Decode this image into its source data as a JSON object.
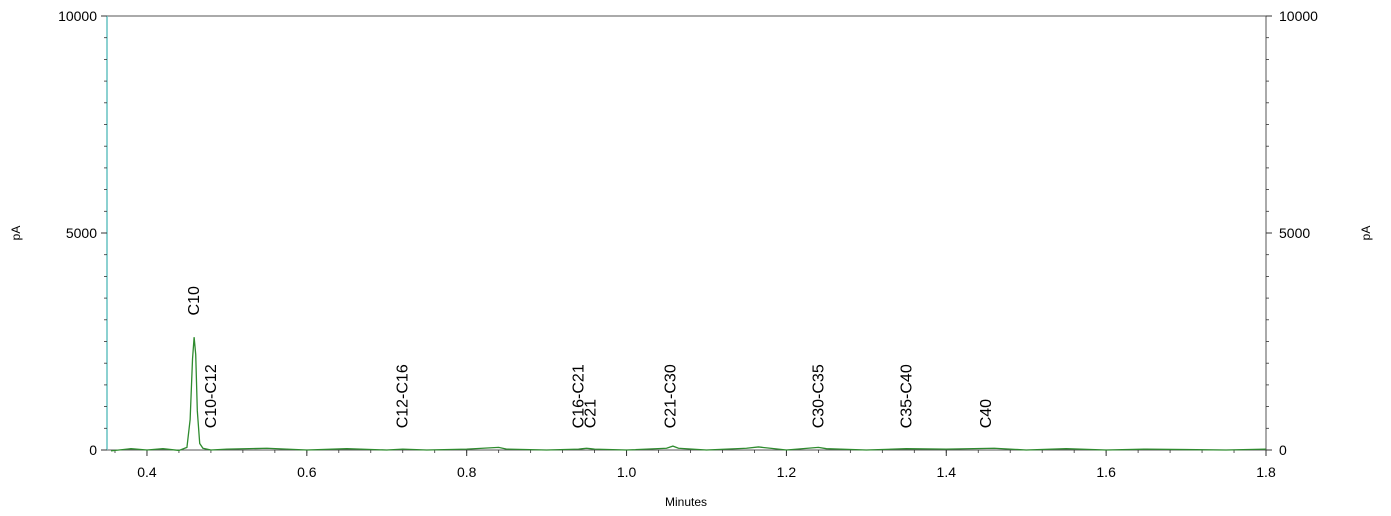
{
  "chart_data": {
    "type": "line",
    "title": "",
    "xlabel": "Minutes",
    "ylabel": "pA",
    "y2label": "pA",
    "xlim": [
      0.35,
      1.8
    ],
    "ylim": [
      0,
      10000
    ],
    "x_ticks": [
      0.4,
      0.6,
      0.8,
      1.0,
      1.2,
      1.4,
      1.6,
      1.8
    ],
    "x_tick_labels": [
      "0.4",
      "0.6",
      "0.8",
      "1.0",
      "1.2",
      "1.4",
      "1.6",
      "1.8"
    ],
    "y_ticks": [
      0,
      5000,
      10000
    ],
    "y_tick_labels": [
      "0",
      "5000",
      "10000"
    ],
    "grid": false,
    "colors": {
      "signal": "#2e8b2e",
      "axis_left_accent": "#66c2c2"
    },
    "series": [
      {
        "x": [
          0.355,
          0.38,
          0.4,
          0.42,
          0.44,
          0.45,
          0.454,
          0.457,
          0.459,
          0.461,
          0.463,
          0.466,
          0.47,
          0.48,
          0.5,
          0.55,
          0.6,
          0.65,
          0.7,
          0.72,
          0.75,
          0.8,
          0.84,
          0.85,
          0.9,
          0.94,
          0.945,
          0.95,
          0.955,
          0.96,
          1.0,
          1.05,
          1.058,
          1.065,
          1.1,
          1.15,
          1.165,
          1.18,
          1.2,
          1.24,
          1.25,
          1.3,
          1.35,
          1.4,
          1.46,
          1.48,
          1.5,
          1.55,
          1.6,
          1.65,
          1.7,
          1.75,
          1.8
        ],
        "y": [
          -20,
          30,
          0,
          30,
          -10,
          60,
          700,
          2100,
          2600,
          2200,
          900,
          150,
          40,
          0,
          20,
          40,
          0,
          30,
          0,
          20,
          0,
          20,
          60,
          20,
          0,
          20,
          30,
          40,
          30,
          20,
          0,
          40,
          90,
          40,
          0,
          40,
          70,
          40,
          0,
          60,
          30,
          0,
          30,
          20,
          40,
          20,
          0,
          30,
          0,
          20,
          10,
          0,
          20
        ]
      }
    ],
    "annotations": [
      {
        "text": "C10",
        "x": 0.459,
        "y": 3100
      },
      {
        "text": "C10-C12",
        "x": 0.48,
        "y": 500
      },
      {
        "text": "C12-C16",
        "x": 0.72,
        "y": 500
      },
      {
        "text": "C16-C21",
        "x": 0.94,
        "y": 500
      },
      {
        "text": "C21",
        "x": 0.955,
        "y": 500
      },
      {
        "text": "C21-C30",
        "x": 1.055,
        "y": 500
      },
      {
        "text": "C30-C35",
        "x": 1.24,
        "y": 500
      },
      {
        "text": "C35-C40",
        "x": 1.35,
        "y": 500
      },
      {
        "text": "C40",
        "x": 1.45,
        "y": 500
      }
    ]
  }
}
